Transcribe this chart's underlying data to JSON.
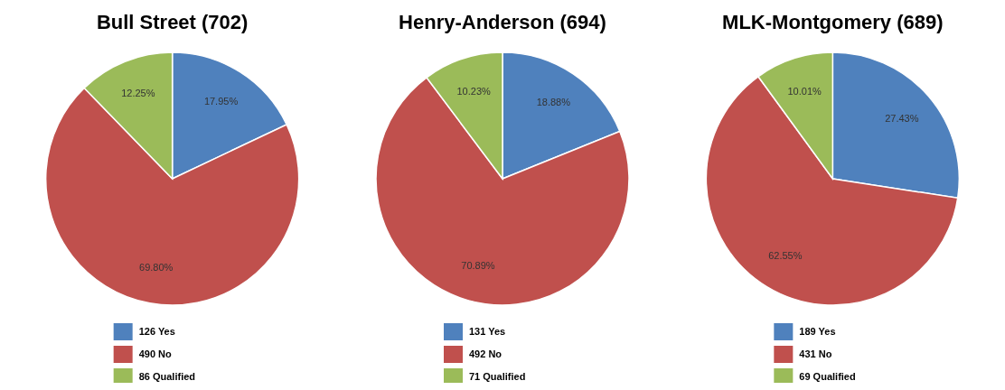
{
  "chart_data": [
    {
      "type": "pie",
      "title": "Bull Street (702)",
      "categories": [
        "126 Yes",
        "490 No",
        "86 Qualified"
      ],
      "values": [
        17.95,
        69.8,
        12.25
      ],
      "value_labels": [
        "17.95%",
        "69.80%",
        "12.25%"
      ],
      "colors": [
        "#4f81bd",
        "#c0504d",
        "#9bbb59"
      ],
      "legend": "bottom"
    },
    {
      "type": "pie",
      "title": "Henry-Anderson (694)",
      "categories": [
        "131 Yes",
        "492 No",
        "71 Qualified"
      ],
      "values": [
        18.88,
        70.89,
        10.23
      ],
      "value_labels": [
        "18.88%",
        "70.89%",
        "10.23%"
      ],
      "colors": [
        "#4f81bd",
        "#c0504d",
        "#9bbb59"
      ],
      "legend": "bottom"
    },
    {
      "type": "pie",
      "title": "MLK-Montgomery (689)",
      "categories": [
        "189 Yes",
        "431 No",
        "69 Qualified"
      ],
      "values": [
        27.43,
        62.55,
        10.01
      ],
      "value_labels": [
        "27.43%",
        "62.55%",
        "10.01%"
      ],
      "colors": [
        "#4f81bd",
        "#c0504d",
        "#9bbb59"
      ],
      "legend": "bottom"
    }
  ]
}
